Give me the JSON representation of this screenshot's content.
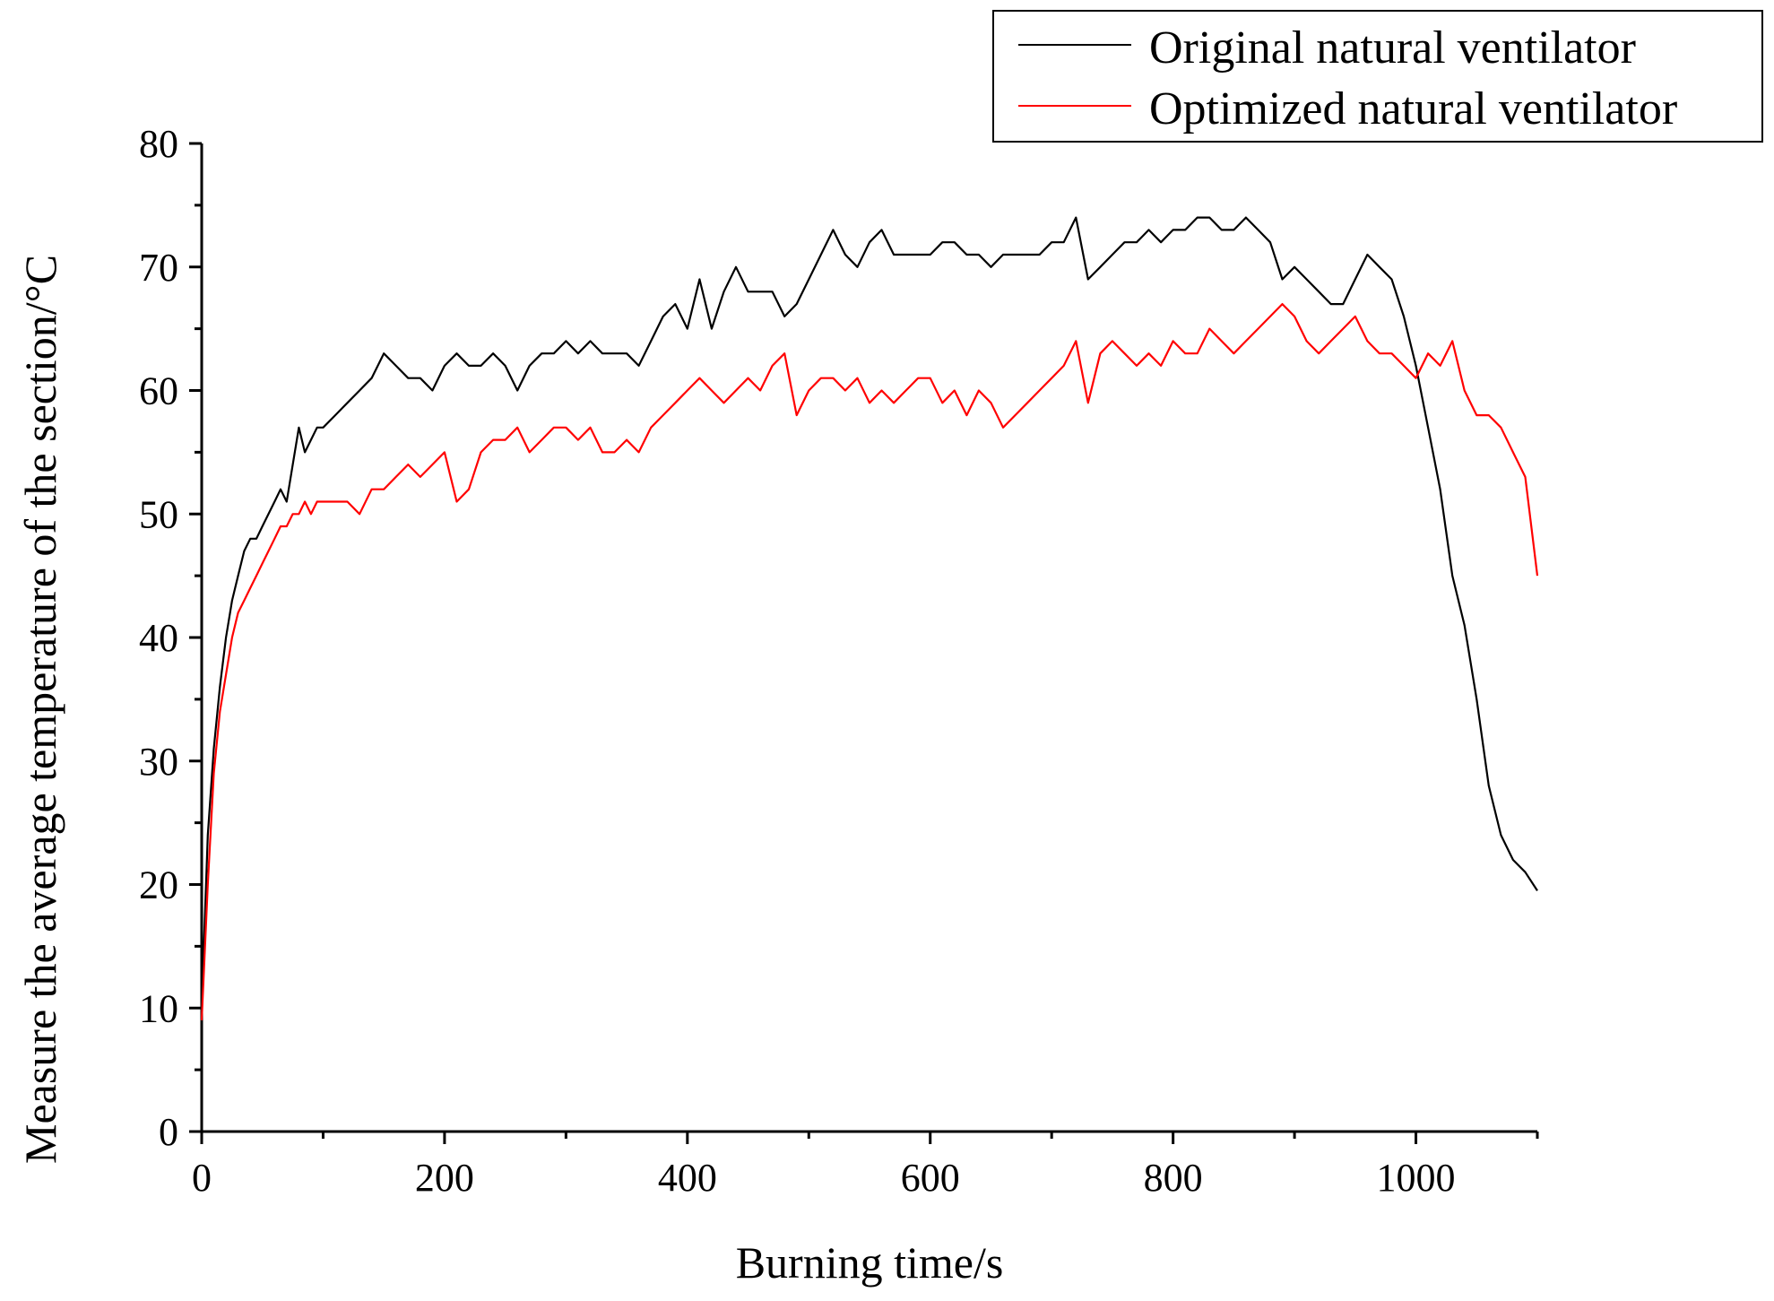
{
  "chart_data": {
    "type": "line",
    "title": "",
    "xlabel": "Burning time/s",
    "ylabel": "Measure the average temperature of the section/°C",
    "xlim": [
      0,
      1100
    ],
    "ylim": [
      0,
      80
    ],
    "x_ticks": [
      0,
      200,
      400,
      600,
      800,
      1000
    ],
    "y_ticks": [
      0,
      10,
      20,
      30,
      40,
      50,
      60,
      70,
      80
    ],
    "x_tick_labels": [
      "0",
      "200",
      "400",
      "600",
      "800",
      "1000"
    ],
    "y_tick_labels": [
      "0",
      "10",
      "20",
      "30",
      "40",
      "50",
      "60",
      "70",
      "80"
    ],
    "grid": false,
    "legend_position": "top-right",
    "series": [
      {
        "name": "Original natural ventilator",
        "color": "#000000",
        "x": [
          0,
          5,
          10,
          15,
          20,
          25,
          30,
          35,
          40,
          45,
          50,
          55,
          60,
          65,
          70,
          75,
          80,
          85,
          90,
          95,
          100,
          110,
          120,
          130,
          140,
          150,
          160,
          170,
          180,
          190,
          200,
          210,
          220,
          230,
          240,
          250,
          260,
          270,
          280,
          290,
          300,
          310,
          320,
          330,
          340,
          350,
          360,
          370,
          380,
          390,
          400,
          410,
          420,
          430,
          440,
          450,
          460,
          470,
          480,
          490,
          500,
          510,
          520,
          530,
          540,
          550,
          560,
          570,
          580,
          590,
          600,
          610,
          620,
          630,
          640,
          650,
          660,
          670,
          680,
          690,
          700,
          710,
          720,
          730,
          740,
          750,
          760,
          770,
          780,
          790,
          800,
          810,
          820,
          830,
          840,
          850,
          860,
          870,
          880,
          890,
          900,
          910,
          920,
          930,
          940,
          950,
          960,
          970,
          980,
          990,
          1000,
          1010,
          1020,
          1030,
          1040,
          1050,
          1060,
          1070,
          1080,
          1090,
          1100
        ],
        "y": [
          10,
          24,
          31,
          36,
          40,
          43,
          45,
          47,
          48,
          48,
          49,
          50,
          51,
          52,
          51,
          54,
          57,
          55,
          56,
          57,
          57,
          58,
          59,
          60,
          61,
          63,
          62,
          61,
          61,
          60,
          62,
          63,
          62,
          62,
          63,
          62,
          60,
          62,
          63,
          63,
          64,
          63,
          64,
          63,
          63,
          63,
          62,
          64,
          66,
          67,
          65,
          69,
          65,
          68,
          70,
          68,
          68,
          68,
          66,
          67,
          69,
          71,
          73,
          71,
          70,
          72,
          73,
          71,
          71,
          71,
          71,
          72,
          72,
          71,
          71,
          70,
          71,
          71,
          71,
          71,
          72,
          72,
          74,
          69,
          70,
          71,
          72,
          72,
          73,
          72,
          73,
          73,
          74,
          74,
          73,
          73,
          74,
          73,
          72,
          69,
          70,
          69,
          68,
          67,
          67,
          69,
          71,
          70,
          69,
          66,
          62,
          57,
          52,
          45,
          41,
          35,
          28,
          24,
          22,
          21,
          19.5
        ]
      },
      {
        "name": "Optimized natural ventilator",
        "color": "#ff0000",
        "x": [
          0,
          5,
          10,
          15,
          20,
          25,
          30,
          35,
          40,
          45,
          50,
          55,
          60,
          65,
          70,
          75,
          80,
          85,
          90,
          95,
          100,
          110,
          120,
          130,
          140,
          150,
          160,
          170,
          180,
          190,
          200,
          210,
          220,
          230,
          240,
          250,
          260,
          270,
          280,
          290,
          300,
          310,
          320,
          330,
          340,
          350,
          360,
          370,
          380,
          390,
          400,
          410,
          420,
          430,
          440,
          450,
          460,
          470,
          480,
          490,
          500,
          510,
          520,
          530,
          540,
          550,
          560,
          570,
          580,
          590,
          600,
          610,
          620,
          630,
          640,
          650,
          660,
          670,
          680,
          690,
          700,
          710,
          720,
          730,
          740,
          750,
          760,
          770,
          780,
          790,
          800,
          810,
          820,
          830,
          840,
          850,
          860,
          870,
          880,
          890,
          900,
          910,
          920,
          930,
          940,
          950,
          960,
          970,
          980,
          990,
          1000,
          1010,
          1020,
          1030,
          1040,
          1050,
          1060,
          1070,
          1080,
          1090,
          1100
        ],
        "y": [
          9,
          20,
          29,
          34,
          37,
          40,
          42,
          43,
          44,
          45,
          46,
          47,
          48,
          49,
          49,
          50,
          50,
          51,
          50,
          51,
          51,
          51,
          51,
          50,
          52,
          52,
          53,
          54,
          53,
          54,
          55,
          51,
          52,
          55,
          56,
          56,
          57,
          55,
          56,
          57,
          57,
          56,
          57,
          55,
          55,
          56,
          55,
          57,
          58,
          59,
          60,
          61,
          60,
          59,
          60,
          61,
          60,
          62,
          63,
          58,
          60,
          61,
          61,
          60,
          61,
          59,
          60,
          59,
          60,
          61,
          61,
          59,
          60,
          58,
          60,
          59,
          57,
          58,
          59,
          60,
          61,
          62,
          64,
          59,
          63,
          64,
          63,
          62,
          63,
          62,
          64,
          63,
          63,
          65,
          64,
          63,
          64,
          65,
          66,
          67,
          66,
          64,
          63,
          64,
          65,
          66,
          64,
          63,
          63,
          62,
          61,
          63,
          62,
          64,
          60,
          58,
          58,
          57,
          55,
          53,
          45
        ]
      }
    ]
  }
}
